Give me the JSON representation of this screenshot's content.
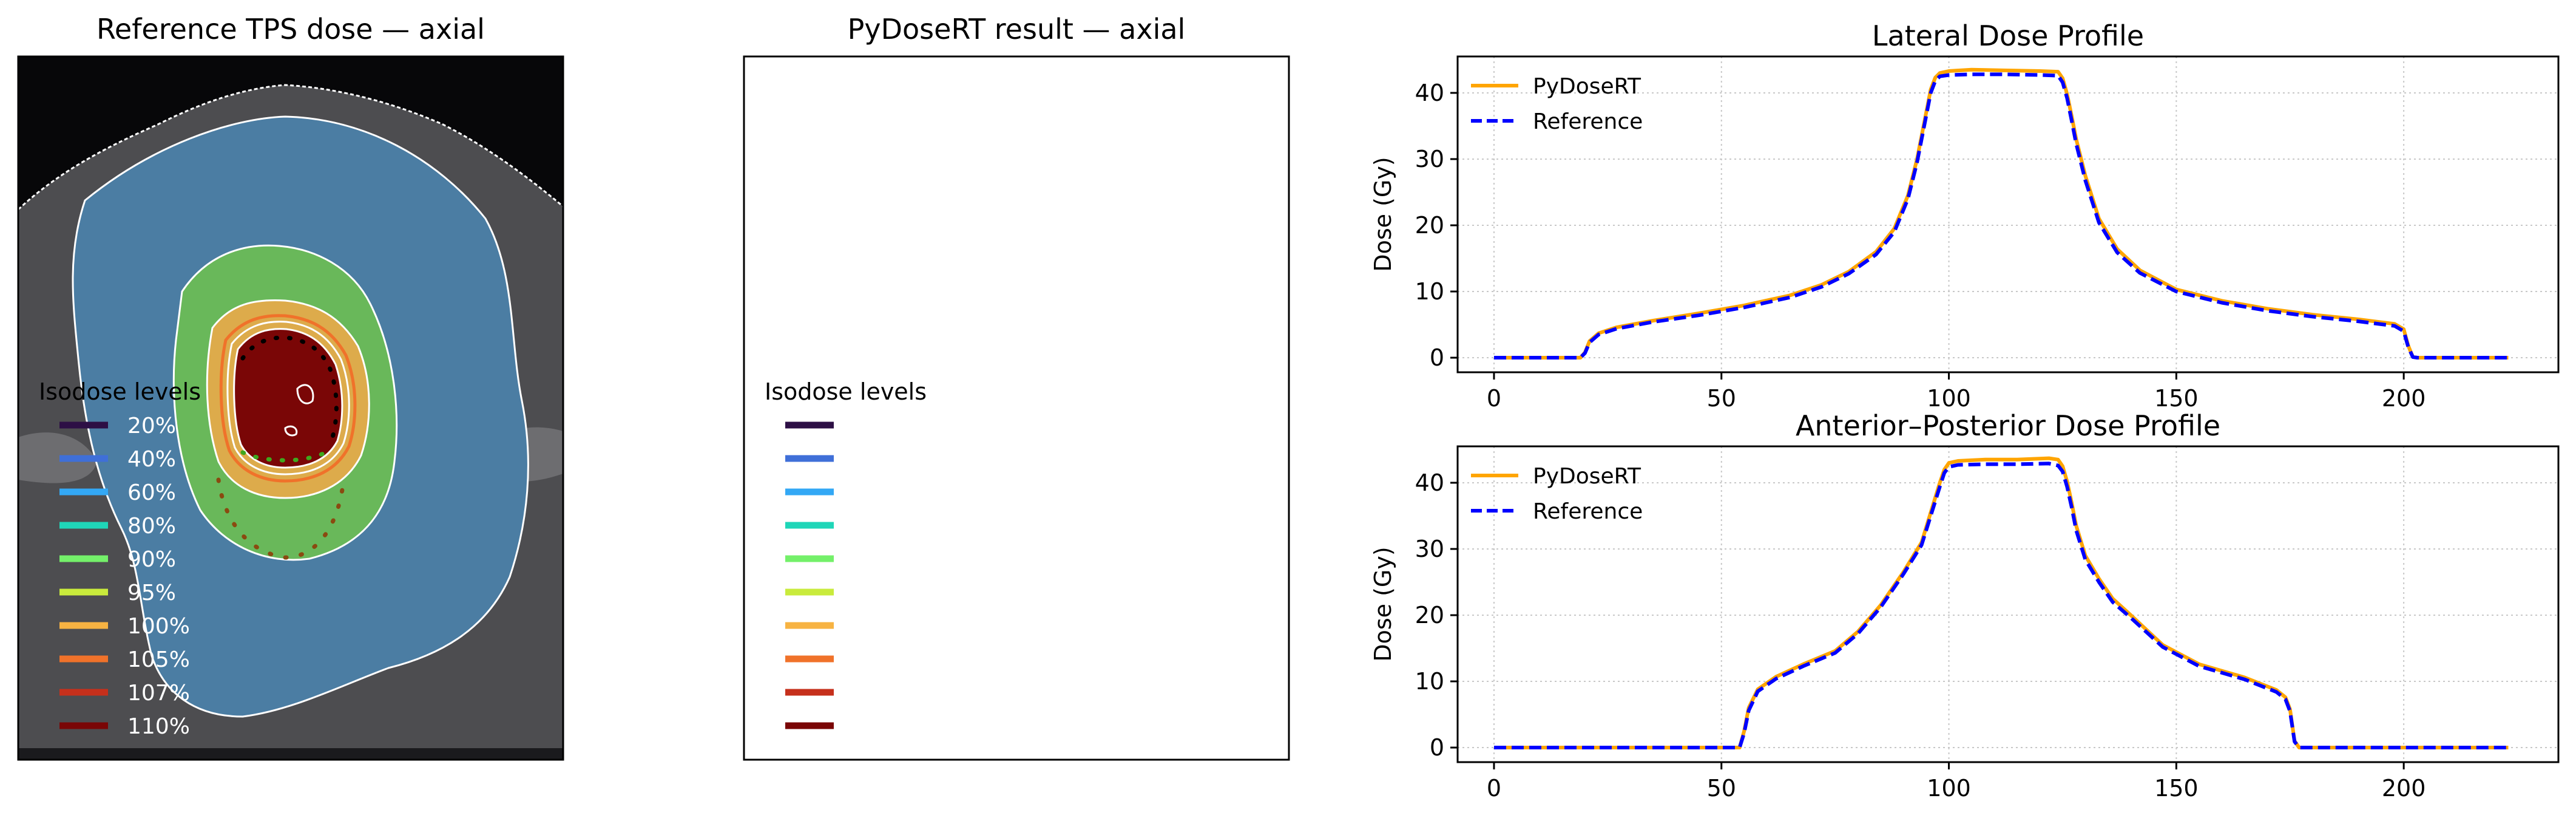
{
  "colors": {
    "iso_20": "#2d0f45",
    "iso_40": "#3f6fd8",
    "iso_60": "#33a8f5",
    "iso_80": "#1fd6b8",
    "iso_90": "#74f06a",
    "iso_95": "#c9eb3c",
    "iso_100": "#f7b342",
    "iso_105": "#f0722a",
    "iso_107": "#c6301c",
    "iso_110": "#7a0606",
    "ct_bg": "#070709",
    "ct_tissue": "#4d4d50",
    "dose_low": "#4b7da3",
    "dose_mid": "#69b85a",
    "dose_high": "#ddab4b",
    "pydosert_line": "#ffa500",
    "reference_line": "#0000ff",
    "grid": "#c8c8c8"
  },
  "panels": {
    "left_title": "Reference TPS dose — axial",
    "middle_title": "PyDoseRT result — axial"
  },
  "isodose_legend": {
    "title": "Isodose levels",
    "levels": [
      {
        "label": "20%",
        "color_key": "iso_20"
      },
      {
        "label": "40%",
        "color_key": "iso_40"
      },
      {
        "label": "60%",
        "color_key": "iso_60"
      },
      {
        "label": "80%",
        "color_key": "iso_80"
      },
      {
        "label": "90%",
        "color_key": "iso_90"
      },
      {
        "label": "95%",
        "color_key": "iso_95"
      },
      {
        "label": "100%",
        "color_key": "iso_100"
      },
      {
        "label": "105%",
        "color_key": "iso_105"
      },
      {
        "label": "107%",
        "color_key": "iso_107"
      },
      {
        "label": "110%",
        "color_key": "iso_110"
      }
    ]
  },
  "chart_data": [
    {
      "type": "line",
      "title": "Lateral Dose Profile",
      "xlabel": "",
      "ylabel": "Dose (Gy)",
      "xlim": [
        -8,
        234
      ],
      "ylim": [
        -2.2,
        45.5
      ],
      "xticks": [
        "0",
        "50",
        "100",
        "150",
        "200"
      ],
      "xtick_values": [
        0,
        50,
        100,
        150,
        200
      ],
      "yticks": [
        "0",
        "10",
        "20",
        "30",
        "40"
      ],
      "ytick_values": [
        0,
        10,
        20,
        30,
        40
      ],
      "grid": true,
      "legend_position": "top-left",
      "series": [
        {
          "name": "PyDoseRT",
          "style": "solid",
          "color_key": "pydosert_line",
          "x": [
            0,
            19,
            20,
            21,
            23,
            27,
            35,
            45,
            55,
            65,
            72,
            78,
            84,
            88,
            91,
            93,
            95,
            96,
            97,
            98,
            100,
            105,
            112,
            120,
            124,
            125,
            126,
            127,
            128,
            130,
            133,
            137,
            142,
            150,
            160,
            170,
            180,
            190,
            198,
            200,
            201,
            202,
            203,
            210,
            223
          ],
          "y": [
            0,
            0,
            0.8,
            2.5,
            3.7,
            4.6,
            5.6,
            6.7,
            7.9,
            9.4,
            11.0,
            13.0,
            16.0,
            19.5,
            24.5,
            30.0,
            37.0,
            40.5,
            42.3,
            43.0,
            43.3,
            43.5,
            43.4,
            43.3,
            43.2,
            42.2,
            39.8,
            36.5,
            33.0,
            27.5,
            21.0,
            16.4,
            13.2,
            10.3,
            8.6,
            7.4,
            6.5,
            5.8,
            5.1,
            4.3,
            1.8,
            0.1,
            0,
            0,
            0
          ]
        },
        {
          "name": "Reference",
          "style": "dashed",
          "color_key": "reference_line",
          "x": [
            0,
            19,
            20,
            21,
            23,
            27,
            35,
            45,
            55,
            65,
            72,
            78,
            84,
            88,
            91,
            93,
            95,
            96,
            97,
            98,
            100,
            105,
            112,
            120,
            124,
            125,
            126,
            127,
            128,
            130,
            133,
            137,
            142,
            150,
            160,
            170,
            180,
            190,
            198,
            200,
            201,
            202,
            203,
            210,
            223
          ],
          "y": [
            0,
            0,
            0.7,
            2.3,
            3.5,
            4.4,
            5.4,
            6.4,
            7.6,
            9.1,
            10.7,
            12.7,
            15.6,
            19.0,
            24.0,
            29.5,
            36.5,
            40.0,
            41.8,
            42.5,
            42.7,
            42.8,
            42.8,
            42.7,
            42.6,
            41.6,
            39.2,
            35.8,
            32.3,
            26.8,
            20.4,
            15.9,
            12.8,
            10.0,
            8.3,
            7.1,
            6.2,
            5.5,
            4.8,
            4.0,
            1.6,
            0.1,
            0,
            0,
            0
          ]
        }
      ]
    },
    {
      "type": "line",
      "title": "Anterior–Posterior Dose Profile",
      "xlabel": "",
      "ylabel": "Dose (Gy)",
      "xlim": [
        -8,
        234
      ],
      "ylim": [
        -2.2,
        45.5
      ],
      "xticks": [
        "0",
        "50",
        "100",
        "150",
        "200"
      ],
      "xtick_values": [
        0,
        50,
        100,
        150,
        200
      ],
      "yticks": [
        "0",
        "10",
        "20",
        "30",
        "40"
      ],
      "ytick_values": [
        0,
        10,
        20,
        30,
        40
      ],
      "grid": true,
      "legend_position": "top-left",
      "series": [
        {
          "name": "PyDoseRT",
          "style": "solid",
          "color_key": "pydosert_line",
          "x": [
            0,
            54,
            55,
            56,
            58,
            62,
            68,
            75,
            80,
            85,
            90,
            94,
            96,
            98,
            99,
            100,
            102,
            108,
            115,
            122,
            124,
            125,
            126,
            127,
            128,
            130,
            133,
            136,
            140,
            147,
            155,
            165,
            172,
            174,
            175,
            176,
            177,
            190,
            223
          ],
          "y": [
            0,
            0,
            2.5,
            6.0,
            8.8,
            10.7,
            12.6,
            14.6,
            17.5,
            21.5,
            26.5,
            31.0,
            35.5,
            40.0,
            42.0,
            43.0,
            43.3,
            43.5,
            43.5,
            43.7,
            43.5,
            42.5,
            40.2,
            37.0,
            33.5,
            29.0,
            25.5,
            22.5,
            20.0,
            15.5,
            12.6,
            10.6,
            8.7,
            7.6,
            5.8,
            1.0,
            0,
            0,
            0
          ]
        },
        {
          "name": "Reference",
          "style": "dashed",
          "color_key": "reference_line",
          "x": [
            0,
            54,
            55,
            56,
            58,
            62,
            68,
            75,
            80,
            85,
            90,
            94,
            96,
            98,
            99,
            100,
            102,
            108,
            115,
            122,
            124,
            125,
            126,
            127,
            128,
            130,
            133,
            136,
            140,
            147,
            155,
            165,
            172,
            174,
            175,
            176,
            177,
            190,
            223
          ],
          "y": [
            0,
            0,
            2.2,
            5.6,
            8.5,
            10.4,
            12.3,
            14.3,
            17.2,
            21.2,
            26.2,
            30.6,
            35.0,
            39.4,
            41.5,
            42.4,
            42.7,
            42.8,
            42.8,
            42.9,
            42.6,
            41.7,
            39.4,
            36.3,
            32.8,
            28.4,
            25.0,
            22.0,
            19.6,
            15.2,
            12.3,
            10.3,
            8.4,
            7.3,
            5.5,
            0.9,
            0,
            0,
            0
          ]
        }
      ]
    }
  ]
}
